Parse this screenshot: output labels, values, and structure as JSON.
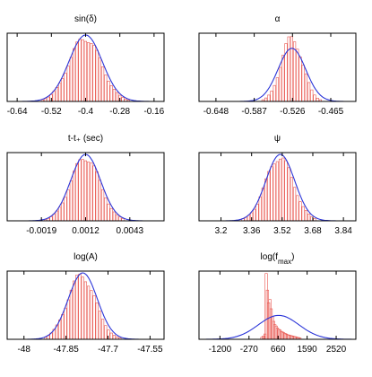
{
  "colors": {
    "histogram": "#e8564f",
    "fit": "#2b35d8",
    "frame": "#000000"
  },
  "chart_data": [
    {
      "type": "bar",
      "title": "sin(δ)",
      "xticks": [
        -0.64,
        -0.52,
        -0.4,
        -0.28,
        -0.16
      ],
      "xticklabels": [
        "-0.64",
        "-0.52",
        "-0.4",
        "-0.28",
        "-0.16"
      ],
      "xlim": [
        -0.675,
        -0.125
      ],
      "fit": {
        "curve": "gaussian",
        "mean": -0.4,
        "sd": 0.058
      },
      "histogram": {
        "dist": "gaussian",
        "mean": -0.402,
        "sd": 0.056
      }
    },
    {
      "type": "bar",
      "title": "α",
      "xticks": [
        -0.648,
        -0.587,
        -0.526,
        -0.465
      ],
      "xticklabels": [
        "-0.648",
        "-0.587",
        "-0.526",
        "-0.465"
      ],
      "xlim": [
        -0.675,
        -0.425
      ],
      "fit": {
        "curve": "gaussian",
        "mean": -0.527,
        "sd": 0.022,
        "peak": 0.8
      },
      "histogram": {
        "dist": "gaussian",
        "mean": -0.527,
        "sd": 0.017
      }
    },
    {
      "type": "bar",
      "title": "t-t₊ (sec)",
      "xticks": [
        -0.0019,
        0.0012,
        0.0043
      ],
      "xticklabels": [
        "-0.0019",
        "0.0012",
        "0.0043"
      ],
      "xlim": [
        -0.0043,
        0.0067
      ],
      "fit": {
        "curve": "gaussian",
        "mean": 0.0012,
        "sd": 0.00105
      },
      "histogram": {
        "dist": "gaussian",
        "mean": 0.00118,
        "sd": 0.00102
      }
    },
    {
      "type": "bar",
      "title": "ψ",
      "xticks": [
        3.2,
        3.36,
        3.52,
        3.68,
        3.84
      ],
      "xticklabels": [
        "3.2",
        "3.36",
        "3.52",
        "3.68",
        "3.84"
      ],
      "xlim": [
        3.085,
        3.905
      ],
      "fit": {
        "curve": "gaussian",
        "mean": 3.51,
        "sd": 0.075
      },
      "histogram": {
        "dist": "gaussian",
        "mean": 3.505,
        "sd": 0.072
      }
    },
    {
      "type": "bar",
      "title": "log(A)",
      "xticks": [
        -48,
        -47.85,
        -47.7,
        -47.55
      ],
      "xticklabels": [
        "-48",
        "-47.85",
        "-47.7",
        "-47.55"
      ],
      "xlim": [
        -48.06,
        -47.5
      ],
      "fit": {
        "curve": "gaussian",
        "mean": -47.79,
        "sd": 0.052
      },
      "histogram": {
        "dist": "gaussian",
        "mean": -47.795,
        "sd": 0.05
      }
    },
    {
      "type": "bar",
      "title_base": "log(f",
      "title_sub": "max",
      "title_end": ")",
      "xticks": [
        -1200,
        -270,
        660,
        1590,
        2520
      ],
      "xticklabels": [
        "-1200",
        "-270",
        "660",
        "1590",
        "2520"
      ],
      "xlim": [
        -1870,
        3150
      ],
      "fit": {
        "curve": "gaussian",
        "mean": 680,
        "sd": 650,
        "peak": 0.36
      },
      "histogram": {
        "dist": "custom",
        "bins": [
          {
            "x": 140,
            "v": 0.03
          },
          {
            "x": 190,
            "v": 0.05
          },
          {
            "x": 240,
            "v": 0.08
          },
          {
            "x": 280,
            "v": 0.99
          },
          {
            "x": 320,
            "v": 0.74
          },
          {
            "x": 360,
            "v": 0.55
          },
          {
            "x": 400,
            "v": 0.6
          },
          {
            "x": 440,
            "v": 0.46
          },
          {
            "x": 480,
            "v": 0.34
          },
          {
            "x": 520,
            "v": 0.27
          },
          {
            "x": 560,
            "v": 0.22
          },
          {
            "x": 600,
            "v": 0.2
          },
          {
            "x": 640,
            "v": 0.17
          },
          {
            "x": 680,
            "v": 0.15
          },
          {
            "x": 720,
            "v": 0.14
          },
          {
            "x": 760,
            "v": 0.12
          },
          {
            "x": 800,
            "v": 0.11
          },
          {
            "x": 840,
            "v": 0.1
          },
          {
            "x": 880,
            "v": 0.09
          },
          {
            "x": 920,
            "v": 0.08
          },
          {
            "x": 960,
            "v": 0.07
          },
          {
            "x": 1000,
            "v": 0.065
          },
          {
            "x": 1040,
            "v": 0.06
          },
          {
            "x": 1080,
            "v": 0.055
          },
          {
            "x": 1120,
            "v": 0.05
          },
          {
            "x": 1160,
            "v": 0.045
          },
          {
            "x": 1200,
            "v": 0.04
          },
          {
            "x": 1240,
            "v": 0.035
          },
          {
            "x": 1280,
            "v": 0.03
          },
          {
            "x": 1320,
            "v": 0.025
          },
          {
            "x": 1360,
            "v": 0.02
          }
        ]
      }
    }
  ]
}
